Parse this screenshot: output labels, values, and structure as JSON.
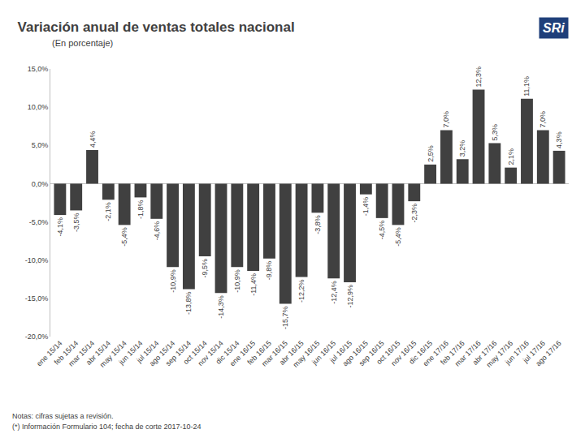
{
  "chart_data": {
    "type": "bar",
    "title": "Variación anual de ventas totales nacional",
    "subtitle": "(En porcentaje)",
    "logo": "SRi",
    "annotations": [
      "Notas: cifras sujetas a revisión.",
      "(*) Información Formulario 104; fecha de corte 2017-10-24"
    ],
    "categories": [
      "ene 15/14",
      "feb 15/14",
      "mar 15/14",
      "abr 15/14",
      "may 15/14",
      "jun 15/14",
      "jul 15/14",
      "ago 15/14",
      "sep 15/14",
      "oct 15/14",
      "nov 15/14",
      "dic 15/14",
      "ene 16/15",
      "feb 16/15",
      "mar 16/15",
      "abr 16/15",
      "may 16/15",
      "jun 16/15",
      "jul 16/15",
      "ago 16/15",
      "sep 16/15",
      "oct 16/15",
      "nov 16/15",
      "dic 16/15",
      "ene 17/16",
      "feb 17/16",
      "mar 17/16",
      "abr 17/16",
      "may 17/16",
      "jun 17/16",
      "jul 17/16",
      "ago 17/16"
    ],
    "values": [
      -4.1,
      -3.5,
      4.4,
      -2.1,
      -5.4,
      -1.8,
      -4.6,
      -10.9,
      -13.8,
      -9.5,
      -14.3,
      -10.9,
      -11.4,
      -9.8,
      -15.7,
      -12.2,
      -3.8,
      -12.4,
      -12.9,
      -1.4,
      -4.5,
      -5.4,
      -2.3,
      2.5,
      7.0,
      3.2,
      12.3,
      5.3,
      2.1,
      11.1,
      7.0,
      4.3
    ],
    "value_labels": [
      "-4,1%",
      "-3,5%",
      "4,4%",
      "-2,1%",
      "-5,4%",
      "-1,8%",
      "-4,6%",
      "-10,9%",
      "-13,8%",
      "-9,5%",
      "-14,3%",
      "-10,9%",
      "-11,4%",
      "-9,8%",
      "-15,7%",
      "-12,2%",
      "-3,8%",
      "-12,4%",
      "-12,9%",
      "-1,4%",
      "-4,5%",
      "-5,4%",
      "-2,3%",
      "2,5%",
      "7,0%",
      "3,2%",
      "12,3%",
      "5,3%",
      "2,1%",
      "11,1%",
      "7,0%",
      "4,3%"
    ],
    "color": "#404040",
    "data_labels": true,
    "grid": false,
    "ylim": [
      -20,
      15
    ],
    "yticks": [
      {
        "value": -20,
        "label": "-20,0%"
      },
      {
        "value": -15,
        "label": "-15,0%"
      },
      {
        "value": -10,
        "label": "-10,0%"
      },
      {
        "value": -5,
        "label": "-5,0%"
      },
      {
        "value": 0,
        "label": "0,0%"
      },
      {
        "value": 5,
        "label": "5,0%"
      },
      {
        "value": 10,
        "label": "10,0%"
      },
      {
        "value": 15,
        "label": "15,0%"
      }
    ]
  }
}
